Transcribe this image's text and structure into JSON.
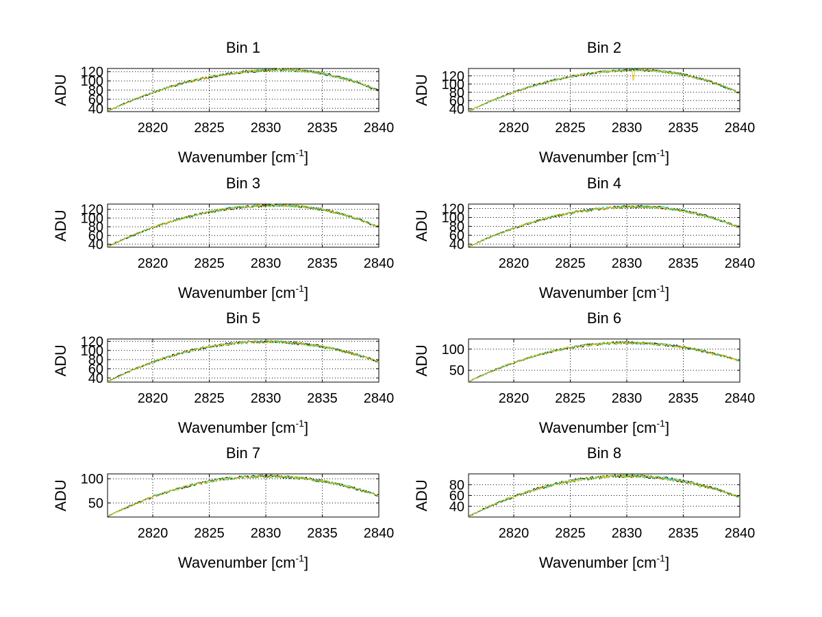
{
  "chart_data": [
    {
      "type": "line",
      "title": "Bin 1",
      "xlabel": "Wavenumber [cm",
      "xlabel_sup": "-1",
      "xlabel_end": "]",
      "ylabel": "ADU",
      "xlim": [
        2816,
        2840
      ],
      "ylim": [
        33,
        127
      ],
      "xticks": [
        2820,
        2825,
        2830,
        2835,
        2840
      ],
      "yticks": [
        40,
        60,
        80,
        100,
        120
      ],
      "profile": {
        "start": 34,
        "peak": 124,
        "peak_x": 2831.5,
        "end": 78,
        "spikes": []
      }
    },
    {
      "type": "line",
      "title": "Bin 2",
      "xlabel": "Wavenumber [cm",
      "xlabel_sup": "-1",
      "xlabel_end": "]",
      "ylabel": "ADU",
      "xlim": [
        2816,
        2840
      ],
      "ylim": [
        33,
        138
      ],
      "xticks": [
        2820,
        2825,
        2830,
        2835,
        2840
      ],
      "yticks": [
        40,
        60,
        80,
        100,
        120
      ],
      "profile": {
        "start": 34,
        "peak": 134,
        "peak_x": 2831,
        "end": 78,
        "spikes": [
          [
            2830.6,
            -22
          ],
          [
            2833.8,
            -6
          ]
        ]
      }
    },
    {
      "type": "line",
      "title": "Bin 3",
      "xlabel": "Wavenumber [cm",
      "xlabel_sup": "-1",
      "xlabel_end": "]",
      "ylabel": "ADU",
      "xlim": [
        2816,
        2840
      ],
      "ylim": [
        33,
        132
      ],
      "xticks": [
        2820,
        2825,
        2830,
        2835,
        2840
      ],
      "yticks": [
        40,
        60,
        80,
        100,
        120
      ],
      "profile": {
        "start": 34,
        "peak": 129,
        "peak_x": 2831,
        "end": 79,
        "spikes": []
      }
    },
    {
      "type": "line",
      "title": "Bin 4",
      "xlabel": "Wavenumber [cm",
      "xlabel_sup": "-1",
      "xlabel_end": "]",
      "ylabel": "ADU",
      "xlim": [
        2816,
        2840
      ],
      "ylim": [
        33,
        130
      ],
      "xticks": [
        2820,
        2825,
        2830,
        2835,
        2840
      ],
      "yticks": [
        40,
        60,
        80,
        100,
        120
      ],
      "profile": {
        "start": 34,
        "peak": 124,
        "peak_x": 2831,
        "end": 77,
        "spikes": []
      }
    },
    {
      "type": "line",
      "title": "Bin 5",
      "xlabel": "Wavenumber [cm",
      "xlabel_sup": "-1",
      "xlabel_end": "]",
      "ylabel": "ADU",
      "xlim": [
        2816,
        2840
      ],
      "ylim": [
        31,
        125
      ],
      "xticks": [
        2820,
        2825,
        2830,
        2835,
        2840
      ],
      "yticks": [
        40,
        60,
        80,
        100,
        120
      ],
      "profile": {
        "start": 32,
        "peak": 119,
        "peak_x": 2830,
        "end": 75,
        "spikes": [
          [
            2831.5,
            -6
          ]
        ]
      }
    },
    {
      "type": "line",
      "title": "Bin 6",
      "xlabel": "Wavenumber [cm",
      "xlabel_sup": "-1",
      "xlabel_end": "]",
      "ylabel": "ADU",
      "xlim": [
        2816,
        2840
      ],
      "ylim": [
        22,
        124
      ],
      "xticks": [
        2820,
        2825,
        2830,
        2835,
        2840
      ],
      "yticks": [
        50,
        100
      ],
      "profile": {
        "start": 23,
        "peak": 115,
        "peak_x": 2830,
        "end": 72,
        "spikes": [
          [
            2837.6,
            -6
          ]
        ]
      }
    },
    {
      "type": "line",
      "title": "Bin 7",
      "xlabel": "Wavenumber [cm",
      "xlabel_sup": "-1",
      "xlabel_end": "]",
      "ylabel": "ADU",
      "xlim": [
        2816,
        2840
      ],
      "ylim": [
        21,
        110
      ],
      "xticks": [
        2820,
        2825,
        2830,
        2835,
        2840
      ],
      "yticks": [
        50,
        100
      ],
      "profile": {
        "start": 22,
        "peak": 105,
        "peak_x": 2830,
        "end": 65,
        "spikes": [
          [
            2837.2,
            -5
          ]
        ]
      }
    },
    {
      "type": "line",
      "title": "Bin 8",
      "xlabel": "Wavenumber [cm",
      "xlabel_sup": "-1",
      "xlabel_end": "]",
      "ylabel": "ADU",
      "xlim": [
        2816,
        2840
      ],
      "ylim": [
        20,
        100
      ],
      "xticks": [
        2820,
        2825,
        2830,
        2835,
        2840
      ],
      "yticks": [
        40,
        60,
        80
      ],
      "profile": {
        "start": 21,
        "peak": 96,
        "peak_x": 2830,
        "end": 57,
        "spikes": [
          [
            2836.5,
            -4
          ]
        ]
      }
    }
  ],
  "series_colors": [
    "#000000",
    "#00c8a0",
    "#e8c000"
  ]
}
